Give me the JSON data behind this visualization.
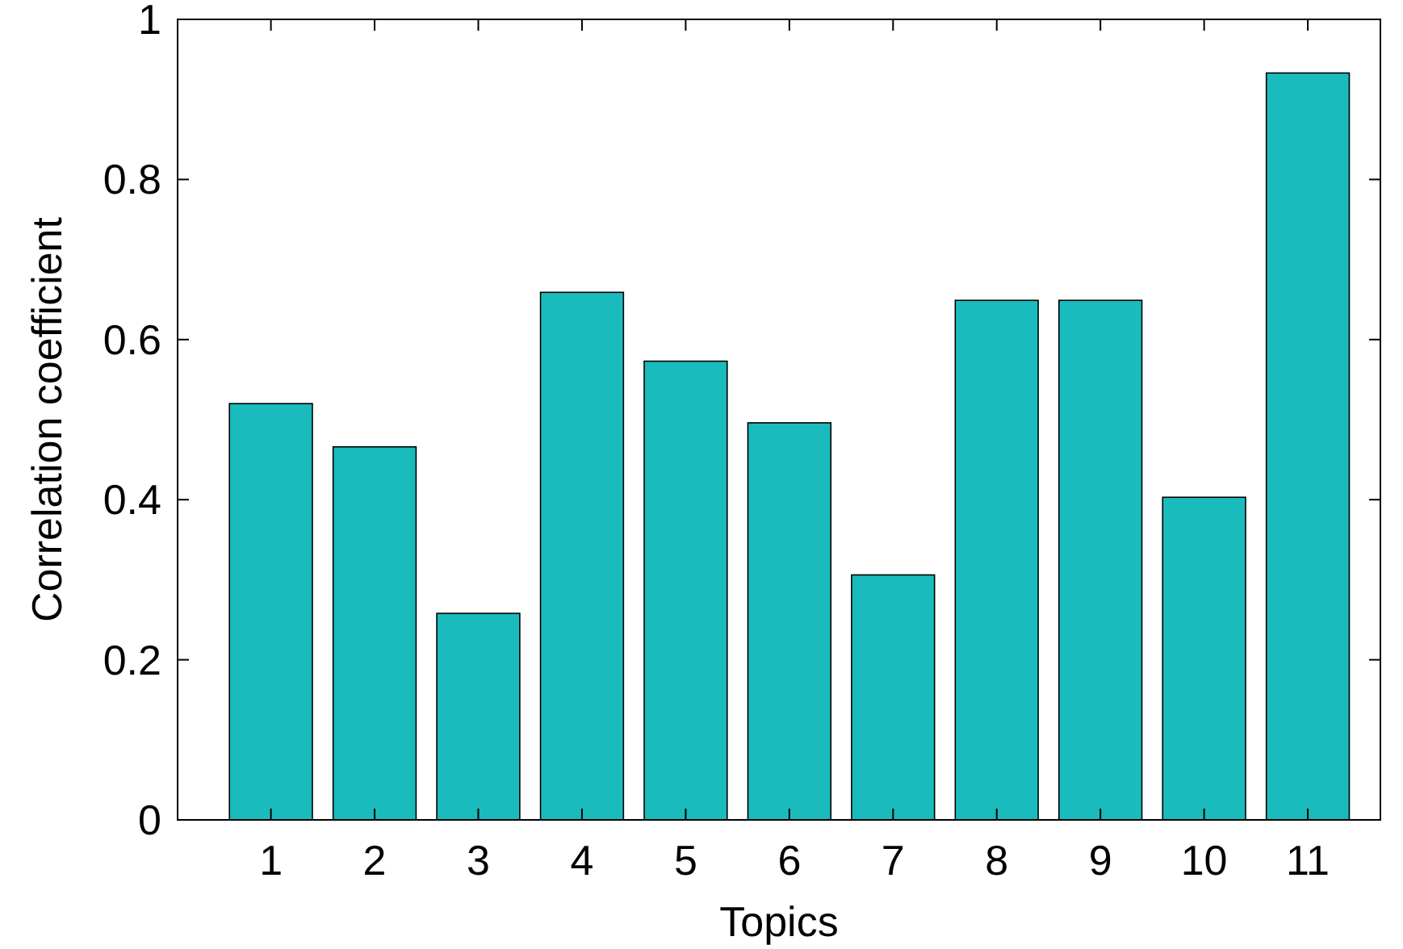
{
  "chart_data": {
    "type": "bar",
    "xlabel": "Topics",
    "ylabel": "Correlation coefficient",
    "categories": [
      "1",
      "2",
      "3",
      "4",
      "5",
      "6",
      "7",
      "8",
      "9",
      "10",
      "11"
    ],
    "values": [
      0.52,
      0.466,
      0.258,
      0.659,
      0.573,
      0.496,
      0.306,
      0.649,
      0.649,
      0.403,
      0.933
    ],
    "color": "#1abbbd",
    "ylim": [
      0,
      1
    ],
    "yticks": [
      0,
      0.2,
      0.4,
      0.6,
      0.8,
      1
    ],
    "grid": false
  }
}
